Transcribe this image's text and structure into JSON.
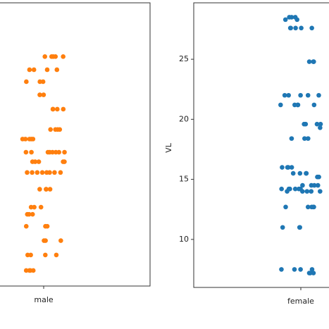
{
  "chart_data": [
    {
      "type": "strip",
      "categories": [
        "male"
      ],
      "color": "#ff7f0e",
      "ylim": [
        6,
        29.7
      ],
      "values": [
        25.2,
        25.2,
        25.2,
        25.2,
        25.2,
        24.1,
        24.1,
        24.1,
        24.1,
        23.1,
        23.1,
        23.1,
        22,
        22,
        20.8,
        20.8,
        20.8,
        20.8,
        19.1,
        19.1,
        19.1,
        19.1,
        18.3,
        18.3,
        18.3,
        18.3,
        18.3,
        17.2,
        17.2,
        17.2,
        17.2,
        17.2,
        17.2,
        17.2,
        17.2,
        16.4,
        16.4,
        16.4,
        16.4,
        16.4,
        15.5,
        15.5,
        15.5,
        15.5,
        15.5,
        15.5,
        15.5,
        15.5,
        14.1,
        14.1,
        14.1,
        14.1,
        12.6,
        12.6,
        12.6,
        12,
        12,
        12,
        11,
        11,
        11,
        9.8,
        9.8,
        9.8,
        8.6,
        8.6,
        8.6,
        8.6,
        7.3,
        7.3,
        7.3,
        7.3
      ]
    },
    {
      "type": "strip",
      "categories": [
        "female"
      ],
      "color": "#1f77b4",
      "ylabel": "VL",
      "ylim": [
        6,
        29.7
      ],
      "yticks": [
        10,
        15,
        20,
        25
      ],
      "values": [
        28.5,
        28.5,
        28.5,
        28.3,
        28.3,
        27.6,
        27.6,
        27.6,
        27.6,
        27.6,
        24.8,
        24.8,
        24.8,
        22,
        22,
        22,
        22,
        22,
        21.2,
        21.2,
        21.2,
        21.2,
        21.2,
        19.6,
        19.6,
        19.6,
        19.6,
        19.3,
        18.4,
        18.4,
        18.4,
        16,
        16,
        16,
        16,
        15.5,
        15.5,
        15.5,
        15.5,
        15.2,
        15.2,
        14.5,
        14.5,
        14.5,
        14.5,
        14.2,
        14.2,
        14.2,
        14.2,
        14.2,
        14.2,
        14,
        14,
        14,
        14,
        14,
        12.7,
        12.7,
        12.7,
        12.7,
        12.7,
        11,
        11,
        11,
        7.5,
        7.5,
        7.5,
        7.5,
        7.2,
        7.2,
        7.2
      ]
    }
  ]
}
